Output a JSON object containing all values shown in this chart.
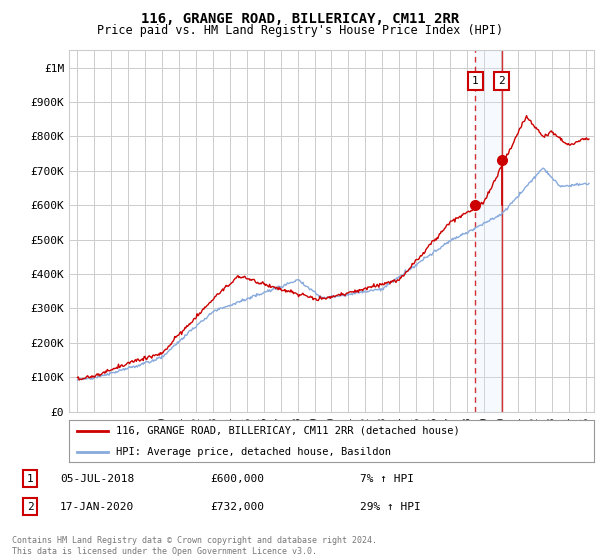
{
  "title": "116, GRANGE ROAD, BILLERICAY, CM11 2RR",
  "subtitle": "Price paid vs. HM Land Registry's House Price Index (HPI)",
  "ylabel_ticks": [
    "£0",
    "£100K",
    "£200K",
    "£300K",
    "£400K",
    "£500K",
    "£600K",
    "£700K",
    "£800K",
    "£900K",
    "£1M"
  ],
  "ylim": [
    0,
    1050000
  ],
  "xlim_start": 1994.5,
  "xlim_end": 2025.5,
  "transaction1": {
    "date_num": 2018.5,
    "price": 600000,
    "label": "1",
    "date_str": "05-JUL-2018",
    "price_str": "£600,000",
    "hpi_str": "7% ↑ HPI"
  },
  "transaction2": {
    "date_num": 2020.05,
    "price": 732000,
    "label": "2",
    "date_str": "17-JAN-2020",
    "price_str": "£732,000",
    "hpi_str": "29% ↑ HPI"
  },
  "legend_line1": "116, GRANGE ROAD, BILLERICAY, CM11 2RR (detached house)",
  "legend_line2": "HPI: Average price, detached house, Basildon",
  "footer": "Contains HM Land Registry data © Crown copyright and database right 2024.\nThis data is licensed under the Open Government Licence v3.0.",
  "price_line_color": "#cc0000",
  "hpi_line_color": "#88aadd",
  "vline1_color": "#cc0000",
  "vline2_color": "#cc0000",
  "shade_color": "#ddeeff",
  "background_color": "#ffffff",
  "grid_color": "#cccccc"
}
